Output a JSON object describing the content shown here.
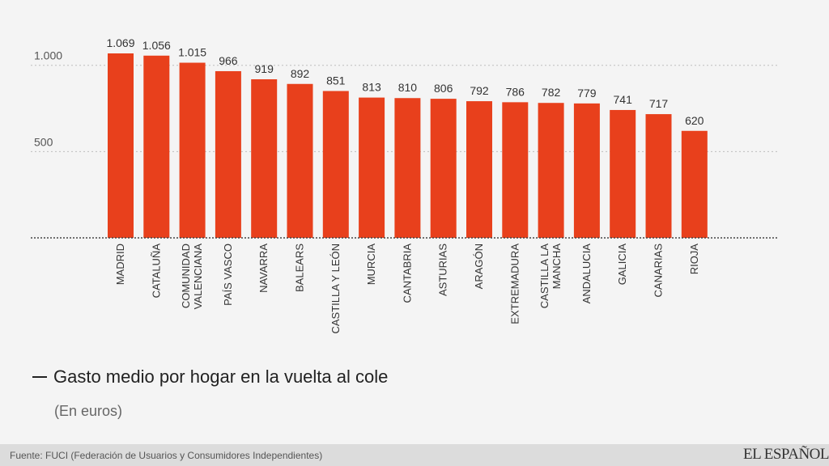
{
  "chart_data": {
    "type": "bar",
    "categories": [
      [
        "MADRID"
      ],
      [
        "CATALUÑA"
      ],
      [
        "COMUNIDAD",
        "VALENCIANA"
      ],
      [
        "PAÍS VASCO"
      ],
      [
        "NAVARRA"
      ],
      [
        "BALEARS"
      ],
      [
        "CASTILLA Y LEÓN"
      ],
      [
        "MURCIA"
      ],
      [
        "CANTABRIA"
      ],
      [
        "ASTURIAS"
      ],
      [
        "ARAGÓN"
      ],
      [
        "EXTREMADURA"
      ],
      [
        "CASTILLA LA",
        "MANCHA"
      ],
      [
        "ANDALUCIA"
      ],
      [
        "GALICIA"
      ],
      [
        "CANARIAS"
      ],
      [
        "RIOJA"
      ]
    ],
    "values": [
      1069,
      1056,
      1015,
      966,
      919,
      892,
      851,
      813,
      810,
      806,
      792,
      786,
      782,
      779,
      741,
      717,
      620
    ],
    "value_labels": [
      "1.069",
      "1.056",
      "1.015",
      "966",
      "919",
      "892",
      "851",
      "813",
      "810",
      "806",
      "792",
      "786",
      "782",
      "779",
      "741",
      "717",
      "620"
    ],
    "yticks": [
      {
        "value": 500,
        "label": "500"
      },
      {
        "value": 1000,
        "label": "1.000"
      }
    ],
    "ylim": [
      0,
      1069
    ],
    "grid": true,
    "bar_color": "#e8401c",
    "title": "",
    "xlabel": "",
    "ylabel": ""
  },
  "legend": {
    "text": "Gasto medio por hogar en la vuelta al cole"
  },
  "subtitle": "(En euros)",
  "footer": {
    "source": "Fuente: FUCI (Federación de Usuarios y Consumidores Independientes)",
    "logo": "EL ESPAÑOL"
  }
}
